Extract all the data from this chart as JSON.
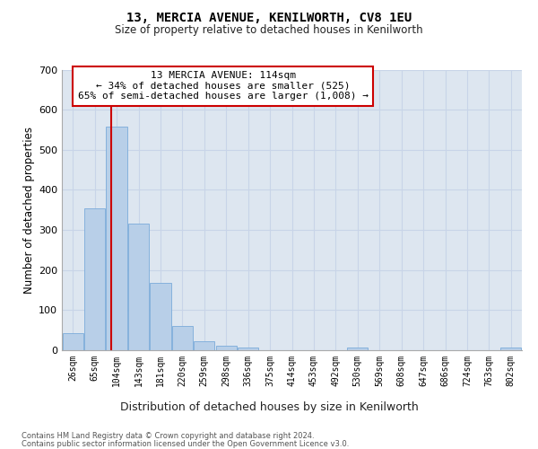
{
  "title": "13, MERCIA AVENUE, KENILWORTH, CV8 1EU",
  "subtitle": "Size of property relative to detached houses in Kenilworth",
  "xlabel": "Distribution of detached houses by size in Kenilworth",
  "ylabel": "Number of detached properties",
  "categories": [
    "26sqm",
    "65sqm",
    "104sqm",
    "143sqm",
    "181sqm",
    "220sqm",
    "259sqm",
    "298sqm",
    "336sqm",
    "375sqm",
    "414sqm",
    "453sqm",
    "492sqm",
    "530sqm",
    "569sqm",
    "608sqm",
    "647sqm",
    "686sqm",
    "724sqm",
    "763sqm",
    "802sqm"
  ],
  "bar_values": [
    42,
    355,
    558,
    315,
    168,
    60,
    22,
    11,
    7,
    0,
    0,
    0,
    0,
    7,
    0,
    0,
    0,
    0,
    0,
    0,
    7
  ],
  "bar_color": "#b8cfe8",
  "bar_edge_color": "#7aabda",
  "grid_color": "#c8d4e8",
  "background_color": "#dde6f0",
  "red_line_color": "#cc0000",
  "annotation_text": "13 MERCIA AVENUE: 114sqm\n← 34% of detached houses are smaller (525)\n65% of semi-detached houses are larger (1,008) →",
  "annotation_box_color": "#ffffff",
  "annotation_box_edge": "#cc0000",
  "footer_line1": "Contains HM Land Registry data © Crown copyright and database right 2024.",
  "footer_line2": "Contains public sector information licensed under the Open Government Licence v3.0.",
  "ylim": [
    0,
    700
  ],
  "yticks": [
    0,
    100,
    200,
    300,
    400,
    500,
    600,
    700
  ],
  "red_line_x": 2.26
}
